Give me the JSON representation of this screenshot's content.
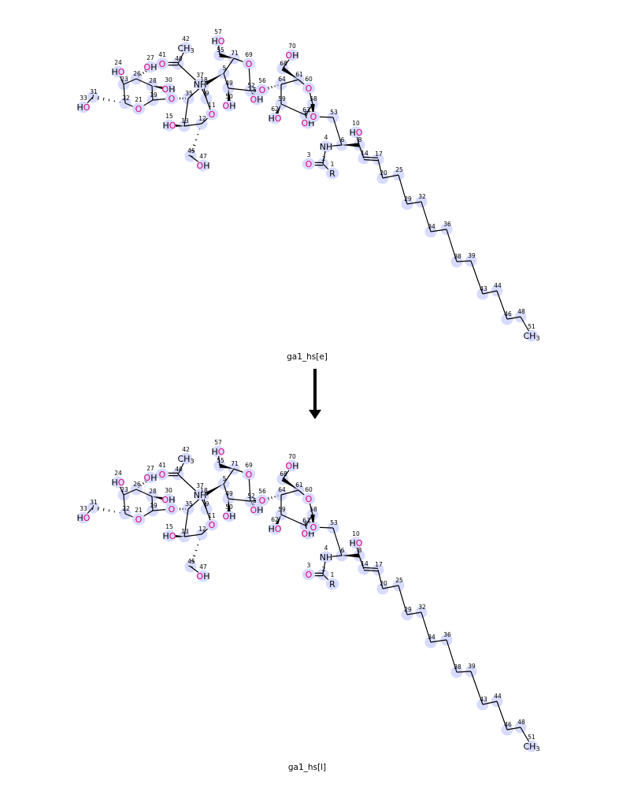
{
  "molecules": [
    {
      "id": "top",
      "caption": "ga1_hs[e]"
    },
    {
      "id": "bottom",
      "caption": "ga1_hs[l]"
    }
  ],
  "arrow": {
    "icon": "down-arrow-icon"
  },
  "colors": {
    "highlight": "#d7dbff",
    "oxygen": "#e0007a",
    "bond": "#000000"
  },
  "atoms": [
    {
      "i": "1",
      "t": "R"
    },
    {
      "i": "2",
      "t": ""
    },
    {
      "i": "3",
      "t": "O"
    },
    {
      "i": "4",
      "t": "NH"
    },
    {
      "i": "6",
      "t": ""
    },
    {
      "i": "8",
      "t": ""
    },
    {
      "i": "10",
      "t": "HO"
    },
    {
      "i": "14",
      "t": ""
    },
    {
      "i": "17",
      "t": ""
    },
    {
      "i": "20",
      "t": ""
    },
    {
      "i": "25",
      "t": ""
    },
    {
      "i": "29",
      "t": ""
    },
    {
      "i": "32",
      "t": ""
    },
    {
      "i": "34",
      "t": ""
    },
    {
      "i": "36",
      "t": ""
    },
    {
      "i": "38",
      "t": ""
    },
    {
      "i": "39",
      "t": ""
    },
    {
      "i": "43",
      "t": ""
    },
    {
      "i": "44",
      "t": ""
    },
    {
      "i": "46",
      "t": ""
    },
    {
      "i": "48",
      "t": ""
    },
    {
      "i": "51",
      "t": "CH3"
    },
    {
      "i": "53",
      "t": ""
    },
    {
      "i": "58",
      "t": ""
    },
    {
      "i": "60",
      "t": "O"
    },
    {
      "i": "61",
      "t": ""
    },
    {
      "i": "63",
      "t": ""
    },
    {
      "i": "65",
      "t": "OH"
    },
    {
      "i": "59",
      "t": ""
    },
    {
      "i": "62",
      "t": "HO"
    },
    {
      "i": "64",
      "t": ""
    },
    {
      "i": "68",
      "t": ""
    },
    {
      "i": "70",
      "t": "OH"
    },
    {
      "i": "52",
      "t": ""
    },
    {
      "i": "54",
      "t": "OH"
    },
    {
      "i": "56",
      "t": "O"
    },
    {
      "i": "49",
      "t": ""
    },
    {
      "i": "50",
      "t": "OH"
    },
    {
      "i": "5",
      "t": ""
    },
    {
      "i": "71",
      "t": ""
    },
    {
      "i": "69",
      "t": "O"
    },
    {
      "i": "55",
      "t": ""
    },
    {
      "i": "57",
      "t": "HO"
    },
    {
      "i": "37",
      "t": "NH"
    },
    {
      "i": "40",
      "t": ""
    },
    {
      "i": "41",
      "t": "O"
    },
    {
      "i": "42",
      "t": "CH3"
    },
    {
      "i": "9",
      "t": ""
    },
    {
      "i": "11",
      "t": "O"
    },
    {
      "i": "12",
      "t": ""
    },
    {
      "i": "13",
      "t": ""
    },
    {
      "i": "15",
      "t": "HO"
    },
    {
      "i": "45",
      "t": ""
    },
    {
      "i": "47",
      "t": "OH"
    },
    {
      "i": "35",
      "t": ""
    },
    {
      "i": "18",
      "t": ""
    },
    {
      "i": "16",
      "t": "O"
    },
    {
      "i": "19",
      "t": ""
    },
    {
      "i": "21",
      "t": "O"
    },
    {
      "i": "22",
      "t": ""
    },
    {
      "i": "23",
      "t": ""
    },
    {
      "i": "24",
      "t": "HO"
    },
    {
      "i": "26",
      "t": ""
    },
    {
      "i": "27",
      "t": "OH"
    },
    {
      "i": "28",
      "t": ""
    },
    {
      "i": "30",
      "t": "OH"
    },
    {
      "i": "31",
      "t": ""
    },
    {
      "i": "33",
      "t": "HO"
    },
    {
      "i": "7",
      "t": "O"
    }
  ]
}
